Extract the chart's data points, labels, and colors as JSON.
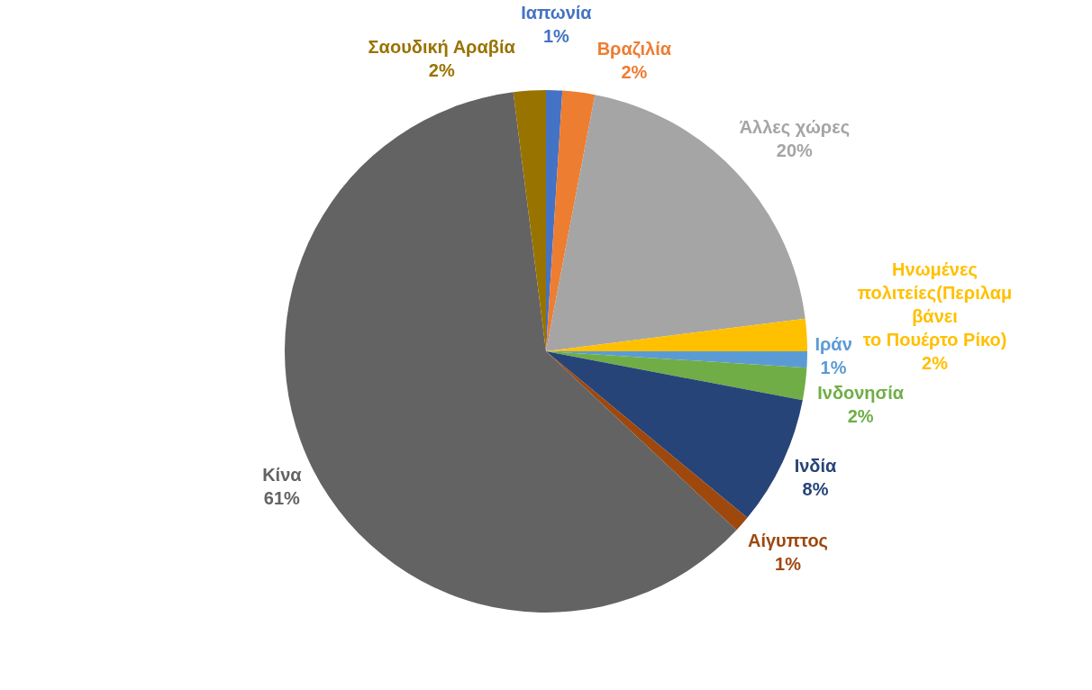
{
  "chart_data": {
    "type": "pie",
    "categories": [
      "Ιαπωνία",
      "Βραζιλία",
      "Άλλες χώρες",
      "Ηνωμένες πολιτείες(Περιλαμβάνει το Πουέρτο Ρίκο)",
      "Ιράν",
      "Ινδονησία",
      "Ινδία",
      "Αίγυπτος",
      "Κίνα",
      "Σαουδική Αραβία"
    ],
    "values": [
      1,
      2,
      20,
      2,
      1,
      2,
      8,
      1,
      61,
      2
    ],
    "value_labels": [
      "1%",
      "2%",
      "20%",
      "2%",
      "1%",
      "2%",
      "8%",
      "1%",
      "61%",
      "2%"
    ],
    "colors": [
      "#4472c4",
      "#ed7d31",
      "#a5a5a5",
      "#ffc000",
      "#5b9bd5",
      "#70ad47",
      "#264478",
      "#9e480e",
      "#636363",
      "#997300"
    ],
    "legend": false
  }
}
